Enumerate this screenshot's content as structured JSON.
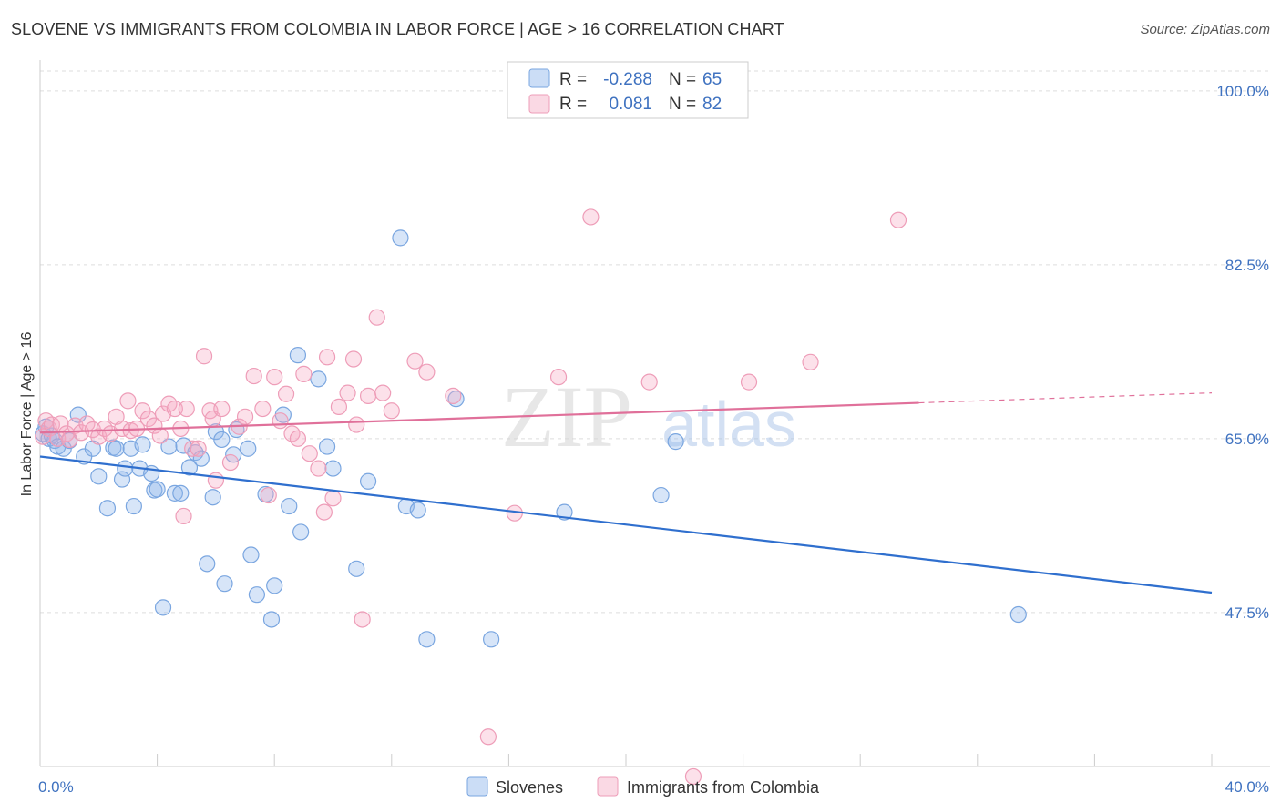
{
  "header": {
    "title": "SLOVENE VS IMMIGRANTS FROM COLOMBIA IN LABOR FORCE | AGE > 16 CORRELATION CHART",
    "source": "Source: ZipAtlas.com"
  },
  "watermark": {
    "zip": "ZIP",
    "atlas": "atlas"
  },
  "colors": {
    "blue": "#7aa6e0",
    "blue_fill": "rgba(140,180,235,0.35)",
    "blue_line": "#2f6fce",
    "pink": "#ee9db8",
    "pink_fill": "rgba(245,170,195,0.35)",
    "pink_line": "#e0709a",
    "tick_text": "#3f72c0"
  },
  "chart_data": {
    "type": "scatter",
    "xlabel": "",
    "ylabel": "In Labor Force | Age > 16",
    "xlim": [
      0,
      40
    ],
    "ylim": [
      32,
      102
    ],
    "x_tick_labels": [
      {
        "v": 0,
        "label": "0.0%"
      },
      {
        "v": 40,
        "label": "40.0%"
      }
    ],
    "y_ticks": [
      {
        "v": 100,
        "label": "100.0%"
      },
      {
        "v": 82.5,
        "label": "82.5%"
      },
      {
        "v": 65,
        "label": "65.0%"
      },
      {
        "v": 47.5,
        "label": "47.5%"
      }
    ],
    "grid": "dashed horizontal",
    "legend": {
      "position": "top-center",
      "rows": [
        {
          "r_label": "R =",
          "r_value": "-0.288",
          "n_label": "N =",
          "n_value": "65"
        },
        {
          "r_label": "R =",
          "r_value": "0.081",
          "n_label": "N =",
          "n_value": "82"
        }
      ]
    },
    "series": [
      {
        "name": "Slovenes",
        "color": "#7aa6e0",
        "trend": {
          "x0": 0,
          "y0": 63.2,
          "x1": 40,
          "y1": 49.5,
          "dashed_from": null
        },
        "points": [
          [
            0.1,
            65.5
          ],
          [
            0.2,
            66.2
          ],
          [
            0.3,
            65.0
          ],
          [
            0.4,
            65.3
          ],
          [
            0.5,
            64.8
          ],
          [
            0.6,
            64.2
          ],
          [
            0.8,
            64.0
          ],
          [
            1.0,
            64.8
          ],
          [
            1.3,
            67.4
          ],
          [
            1.5,
            63.2
          ],
          [
            1.8,
            64.0
          ],
          [
            2.0,
            61.2
          ],
          [
            2.3,
            58.0
          ],
          [
            2.5,
            64.1
          ],
          [
            2.6,
            64.0
          ],
          [
            2.8,
            60.9
          ],
          [
            2.9,
            62.0
          ],
          [
            3.1,
            64.0
          ],
          [
            3.2,
            58.2
          ],
          [
            3.4,
            62.0
          ],
          [
            3.5,
            64.4
          ],
          [
            3.8,
            61.5
          ],
          [
            3.9,
            59.8
          ],
          [
            4.0,
            59.9
          ],
          [
            4.2,
            48.0
          ],
          [
            4.4,
            64.2
          ],
          [
            4.6,
            59.5
          ],
          [
            4.8,
            59.5
          ],
          [
            4.9,
            64.3
          ],
          [
            5.1,
            62.1
          ],
          [
            5.3,
            63.6
          ],
          [
            5.5,
            63.0
          ],
          [
            5.7,
            52.4
          ],
          [
            5.9,
            59.1
          ],
          [
            6.0,
            65.7
          ],
          [
            6.2,
            64.9
          ],
          [
            6.3,
            50.4
          ],
          [
            6.6,
            63.4
          ],
          [
            6.7,
            65.9
          ],
          [
            7.1,
            64.0
          ],
          [
            7.2,
            53.3
          ],
          [
            7.4,
            49.3
          ],
          [
            7.7,
            59.4
          ],
          [
            7.9,
            46.8
          ],
          [
            8.0,
            50.2
          ],
          [
            8.3,
            67.4
          ],
          [
            8.5,
            58.2
          ],
          [
            8.8,
            73.4
          ],
          [
            8.9,
            55.6
          ],
          [
            9.5,
            71.0
          ],
          [
            9.8,
            64.2
          ],
          [
            10.0,
            62.0
          ],
          [
            10.8,
            51.9
          ],
          [
            11.2,
            60.7
          ],
          [
            12.3,
            85.2
          ],
          [
            12.5,
            58.2
          ],
          [
            12.9,
            57.8
          ],
          [
            13.2,
            44.8
          ],
          [
            14.2,
            69.0
          ],
          [
            15.4,
            44.8
          ],
          [
            17.9,
            57.6
          ],
          [
            21.2,
            59.3
          ],
          [
            21.7,
            64.7
          ],
          [
            33.4,
            47.3
          ]
        ]
      },
      {
        "name": "Immigrants from Colombia",
        "color": "#ee9db8",
        "trend": {
          "x0": 0,
          "y0": 65.6,
          "x1": 30,
          "y1": 68.6,
          "dashed_from": 30,
          "x2": 40,
          "y2": 69.6
        },
        "points": [
          [
            0.1,
            65.2
          ],
          [
            0.2,
            66.8
          ],
          [
            0.3,
            66.0
          ],
          [
            0.4,
            66.4
          ],
          [
            0.6,
            65.0
          ],
          [
            0.7,
            66.5
          ],
          [
            0.9,
            65.5
          ],
          [
            1.0,
            64.9
          ],
          [
            1.2,
            66.3
          ],
          [
            1.4,
            65.6
          ],
          [
            1.6,
            66.5
          ],
          [
            1.8,
            65.9
          ],
          [
            2.0,
            65.2
          ],
          [
            2.2,
            66.0
          ],
          [
            2.4,
            65.5
          ],
          [
            2.6,
            67.2
          ],
          [
            2.8,
            66.0
          ],
          [
            3.0,
            68.8
          ],
          [
            3.1,
            65.8
          ],
          [
            3.3,
            66.0
          ],
          [
            3.5,
            67.8
          ],
          [
            3.7,
            67.0
          ],
          [
            3.9,
            66.3
          ],
          [
            4.1,
            65.3
          ],
          [
            4.2,
            67.5
          ],
          [
            4.4,
            68.5
          ],
          [
            4.6,
            68.0
          ],
          [
            4.8,
            66.0
          ],
          [
            4.9,
            57.2
          ],
          [
            5.0,
            68.0
          ],
          [
            5.2,
            64.0
          ],
          [
            5.4,
            64.0
          ],
          [
            5.6,
            73.3
          ],
          [
            5.8,
            67.8
          ],
          [
            5.9,
            67.0
          ],
          [
            6.0,
            60.8
          ],
          [
            6.2,
            68.0
          ],
          [
            6.5,
            62.6
          ],
          [
            6.8,
            66.2
          ],
          [
            7.0,
            67.2
          ],
          [
            7.3,
            71.3
          ],
          [
            7.6,
            68.0
          ],
          [
            7.8,
            59.3
          ],
          [
            8.0,
            71.2
          ],
          [
            8.2,
            66.8
          ],
          [
            8.4,
            69.5
          ],
          [
            8.6,
            65.5
          ],
          [
            8.8,
            65.0
          ],
          [
            9.0,
            71.5
          ],
          [
            9.2,
            63.5
          ],
          [
            9.5,
            62.0
          ],
          [
            9.7,
            57.6
          ],
          [
            9.8,
            73.2
          ],
          [
            10.0,
            59.0
          ],
          [
            10.2,
            68.2
          ],
          [
            10.5,
            69.6
          ],
          [
            10.7,
            73.0
          ],
          [
            10.8,
            66.4
          ],
          [
            11.0,
            46.8
          ],
          [
            11.2,
            69.3
          ],
          [
            11.5,
            77.2
          ],
          [
            11.7,
            69.6
          ],
          [
            12.0,
            67.8
          ],
          [
            12.8,
            72.8
          ],
          [
            13.2,
            71.7
          ],
          [
            14.1,
            69.3
          ],
          [
            15.3,
            35.0
          ],
          [
            16.2,
            57.5
          ],
          [
            17.7,
            71.2
          ],
          [
            18.8,
            87.3
          ],
          [
            20.8,
            70.7
          ],
          [
            24.2,
            70.7
          ],
          [
            26.3,
            72.7
          ],
          [
            29.3,
            87.0
          ],
          [
            22.3,
            31.0
          ]
        ]
      }
    ]
  },
  "bottom_legend": [
    {
      "label": "Slovenes",
      "color": "blue"
    },
    {
      "label": "Immigrants from Colombia",
      "color": "pink"
    }
  ]
}
